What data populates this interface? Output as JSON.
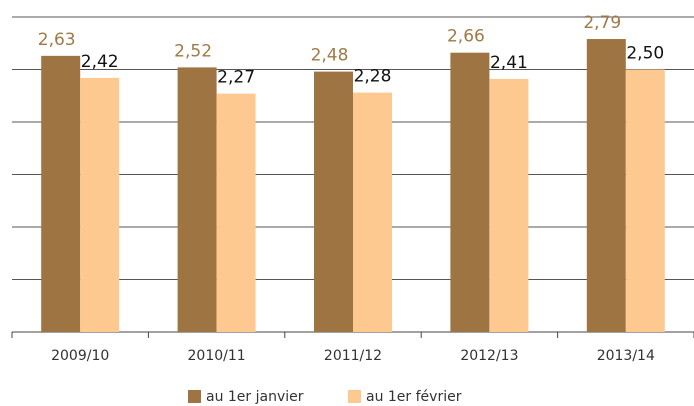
{
  "chart_data": {
    "type": "bar",
    "categories": [
      "2009/10",
      "2010/11",
      "2011/12",
      "2012/13",
      "2013/14"
    ],
    "series": [
      {
        "name": "au 1er janvier",
        "color": "#9e7442",
        "label_color": "#a07a45",
        "values": [
          2.63,
          2.52,
          2.48,
          2.66,
          2.79
        ],
        "value_labels": [
          "2,63",
          "2,52",
          "2,48",
          "2,66",
          "2,79"
        ]
      },
      {
        "name": "au 1er février",
        "color": "#fdc990",
        "label_color": "#111111",
        "values": [
          2.42,
          2.27,
          2.28,
          2.41,
          2.5
        ],
        "value_labels": [
          "2,42",
          "2,27",
          "2,28",
          "2,41",
          "2,50"
        ]
      }
    ],
    "ylim": [
      0,
      3
    ],
    "yticks": [
      0,
      0.5,
      1,
      1.5,
      2,
      2.5,
      3
    ],
    "grid": true,
    "legend": "bottom"
  }
}
